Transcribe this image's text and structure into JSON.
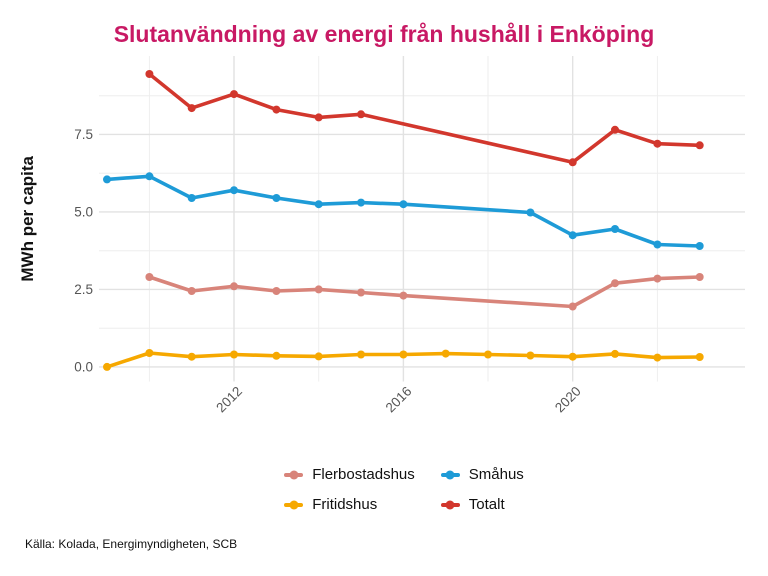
{
  "source": "Källa: Kolada, Energimyndigheten, SCB",
  "colors": {
    "title": "#c81964",
    "axis_text": "#555555",
    "axis_title": "#111111",
    "grid_major": "#e2e2e2",
    "grid_minor": "#eeeeee",
    "background": "#ffffff"
  },
  "chart_data": {
    "type": "line",
    "title": "Slutanvändning av energi från hushåll i Enköping",
    "xlabel": "",
    "ylabel": "MWh per capita",
    "xlim": [
      2008.81,
      2024.07
    ],
    "ylim": [
      -0.47,
      10.03
    ],
    "x_major_ticks": [
      2012,
      2016,
      2020
    ],
    "x_tick_labels": [
      "2012",
      "2016",
      "2020"
    ],
    "x_minor_gridlines": [
      2010,
      2014,
      2018,
      2022
    ],
    "y_major_ticks": [
      0.0,
      2.5,
      5.0,
      7.5
    ],
    "y_tick_labels": [
      "0.0",
      "2.5",
      "5.0",
      "7.5"
    ],
    "y_minor_gridlines": [
      1.25,
      3.75,
      6.25,
      8.75
    ],
    "grid": true,
    "legend_position": "bottom",
    "series": [
      {
        "name": "Flerbostadshus",
        "color": "#d8847a",
        "points": [
          [
            2010,
            2.9
          ],
          [
            2011,
            2.45
          ],
          [
            2012,
            2.6
          ],
          [
            2013,
            2.45
          ],
          [
            2014,
            2.5
          ],
          [
            2015,
            2.4
          ],
          [
            2016,
            2.3
          ],
          [
            2020,
            1.95
          ],
          [
            2021,
            2.7
          ],
          [
            2022,
            2.85
          ],
          [
            2023,
            2.9
          ]
        ]
      },
      {
        "name": "Småhus",
        "color": "#1e9bd7",
        "points": [
          [
            2009,
            6.05
          ],
          [
            2010,
            6.15
          ],
          [
            2011,
            5.45
          ],
          [
            2012,
            5.7
          ],
          [
            2013,
            5.45
          ],
          [
            2014,
            5.25
          ],
          [
            2015,
            5.3
          ],
          [
            2016,
            5.25
          ],
          [
            2019,
            4.98
          ],
          [
            2020,
            4.25
          ],
          [
            2021,
            4.45
          ],
          [
            2022,
            3.95
          ],
          [
            2023,
            3.9
          ]
        ]
      },
      {
        "name": "Fritidshus",
        "color": "#f6a800",
        "points": [
          [
            2009,
            0.0
          ],
          [
            2010,
            0.45
          ],
          [
            2011,
            0.33
          ],
          [
            2012,
            0.4
          ],
          [
            2013,
            0.36
          ],
          [
            2014,
            0.34
          ],
          [
            2015,
            0.4
          ],
          [
            2016,
            0.4
          ],
          [
            2017,
            0.43
          ],
          [
            2018,
            0.4
          ],
          [
            2019,
            0.37
          ],
          [
            2020,
            0.33
          ],
          [
            2021,
            0.42
          ],
          [
            2022,
            0.3
          ],
          [
            2023,
            0.32
          ]
        ]
      },
      {
        "name": "Totalt",
        "color": "#d2372d",
        "points": [
          [
            2010,
            9.45
          ],
          [
            2011,
            8.35
          ],
          [
            2012,
            8.8
          ],
          [
            2013,
            8.3
          ],
          [
            2014,
            8.05
          ],
          [
            2015,
            8.15
          ],
          [
            2020,
            6.6
          ],
          [
            2021,
            7.65
          ],
          [
            2022,
            7.2
          ],
          [
            2023,
            7.15
          ]
        ]
      }
    ]
  }
}
